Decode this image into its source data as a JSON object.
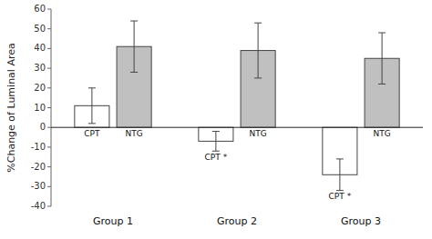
{
  "chart_data": {
    "type": "bar",
    "categories": [
      "Group 1",
      "Group 2",
      "Group 3"
    ],
    "y_label": "%Change of Luminal Area",
    "series": [
      {
        "color": "#ffffff",
        "values": [
          11,
          -7,
          -24
        ],
        "errors": [
          9,
          5,
          8
        ],
        "labels": [
          "CPT",
          "CPT *",
          "CPT *"
        ]
      },
      {
        "color": "#c0c0c0",
        "values": [
          41,
          39,
          35
        ],
        "errors": [
          13,
          14,
          13
        ],
        "labels": [
          "NTG",
          "NTG",
          "NTG"
        ]
      }
    ],
    "ylim": [
      -40,
      60
    ],
    "yticks": [
      -40,
      -30,
      -20,
      -10,
      0,
      10,
      20,
      30,
      40,
      50,
      60
    ],
    "grid": false
  }
}
